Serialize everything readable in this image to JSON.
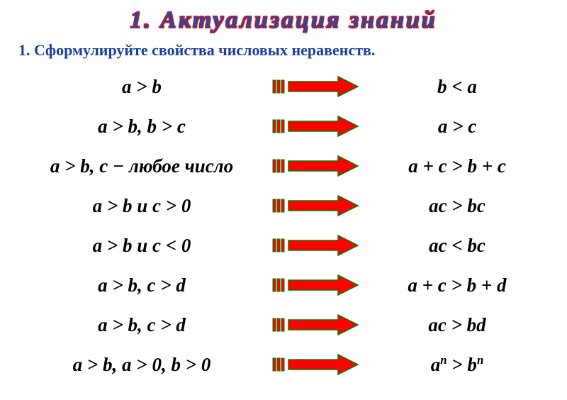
{
  "title": "1. Актуализация знаний",
  "subtitle": "1. Сформулируйте свойства числовых неравенств.",
  "arrow": {
    "fill": "#ff0000",
    "stroke": "#008000",
    "tail_fill": "#ff0000",
    "tail_stroke": "#008000"
  },
  "rows": [
    {
      "left": "a > b",
      "right": "b < a"
    },
    {
      "left": "a > b,  b > c",
      "right": "a > c"
    },
    {
      "left": "a > b,   c − любое  число",
      "right": "a + c > b + c"
    },
    {
      "left": "a > b   и   c > 0",
      "right": "ac > bc"
    },
    {
      "left": "a > b   и   c < 0",
      "right": "ac < bc"
    },
    {
      "left": "a > b,   c > d",
      "right": "a + c > b + d"
    },
    {
      "left": "a > b,   c > d",
      "right": "ac > bd"
    },
    {
      "left": "a > b,   a > 0,  b > 0",
      "right_html": "a<sup>n</sup> > b<sup>n</sup>"
    }
  ]
}
